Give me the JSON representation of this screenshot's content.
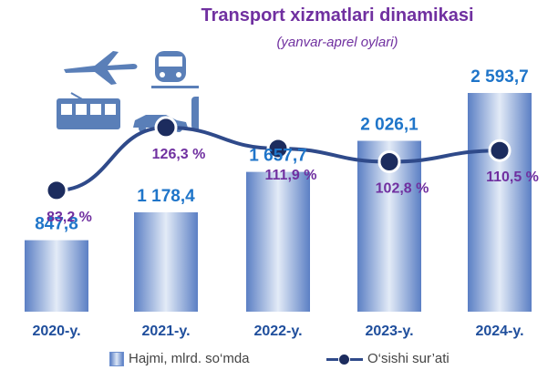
{
  "chart_data": {
    "type": "bar",
    "title": "Transport xizmatlari dinamikasi",
    "subtitle": "(yanvar-aprel oylari)",
    "categories": [
      "2020-y.",
      "2021-y.",
      "2022-y.",
      "2023-y.",
      "2024-y."
    ],
    "series": [
      {
        "name": "Hajmi, mlrd. so‘mda",
        "type": "bar",
        "values": [
          847.8,
          1178.4,
          1657.7,
          2026.1,
          2593.7
        ],
        "labels": [
          "847,8",
          "1 178,4",
          "1 657,7",
          "2 026,1",
          "2 593,7"
        ]
      },
      {
        "name": "O‘sishi sur’ati",
        "type": "line",
        "values": [
          83.2,
          126.3,
          111.9,
          102.8,
          110.5
        ],
        "labels": [
          "83,2 %",
          "126,3 %",
          "111,9 %",
          "102,8 %",
          "110,5 %"
        ]
      }
    ],
    "legend_position": "bottom",
    "grid": false,
    "colors": {
      "bar_edge": "#5b7fc4",
      "bar_center": "#e3ebf7",
      "line": "#2f4a8a",
      "marker": "#1c2c5e",
      "value_label": "#1f75c9",
      "percent_label": "#7030a0",
      "title": "#7030a0",
      "category": "#1f4e9c"
    }
  },
  "legend": {
    "bar_label": "Hajmi, mlrd. so‘mda",
    "line_label": "O‘sishi sur’ati"
  },
  "decorations": {
    "icons": [
      "airplane-icon",
      "train-icon",
      "tram-icon",
      "bus-icon",
      "car-icon"
    ]
  }
}
